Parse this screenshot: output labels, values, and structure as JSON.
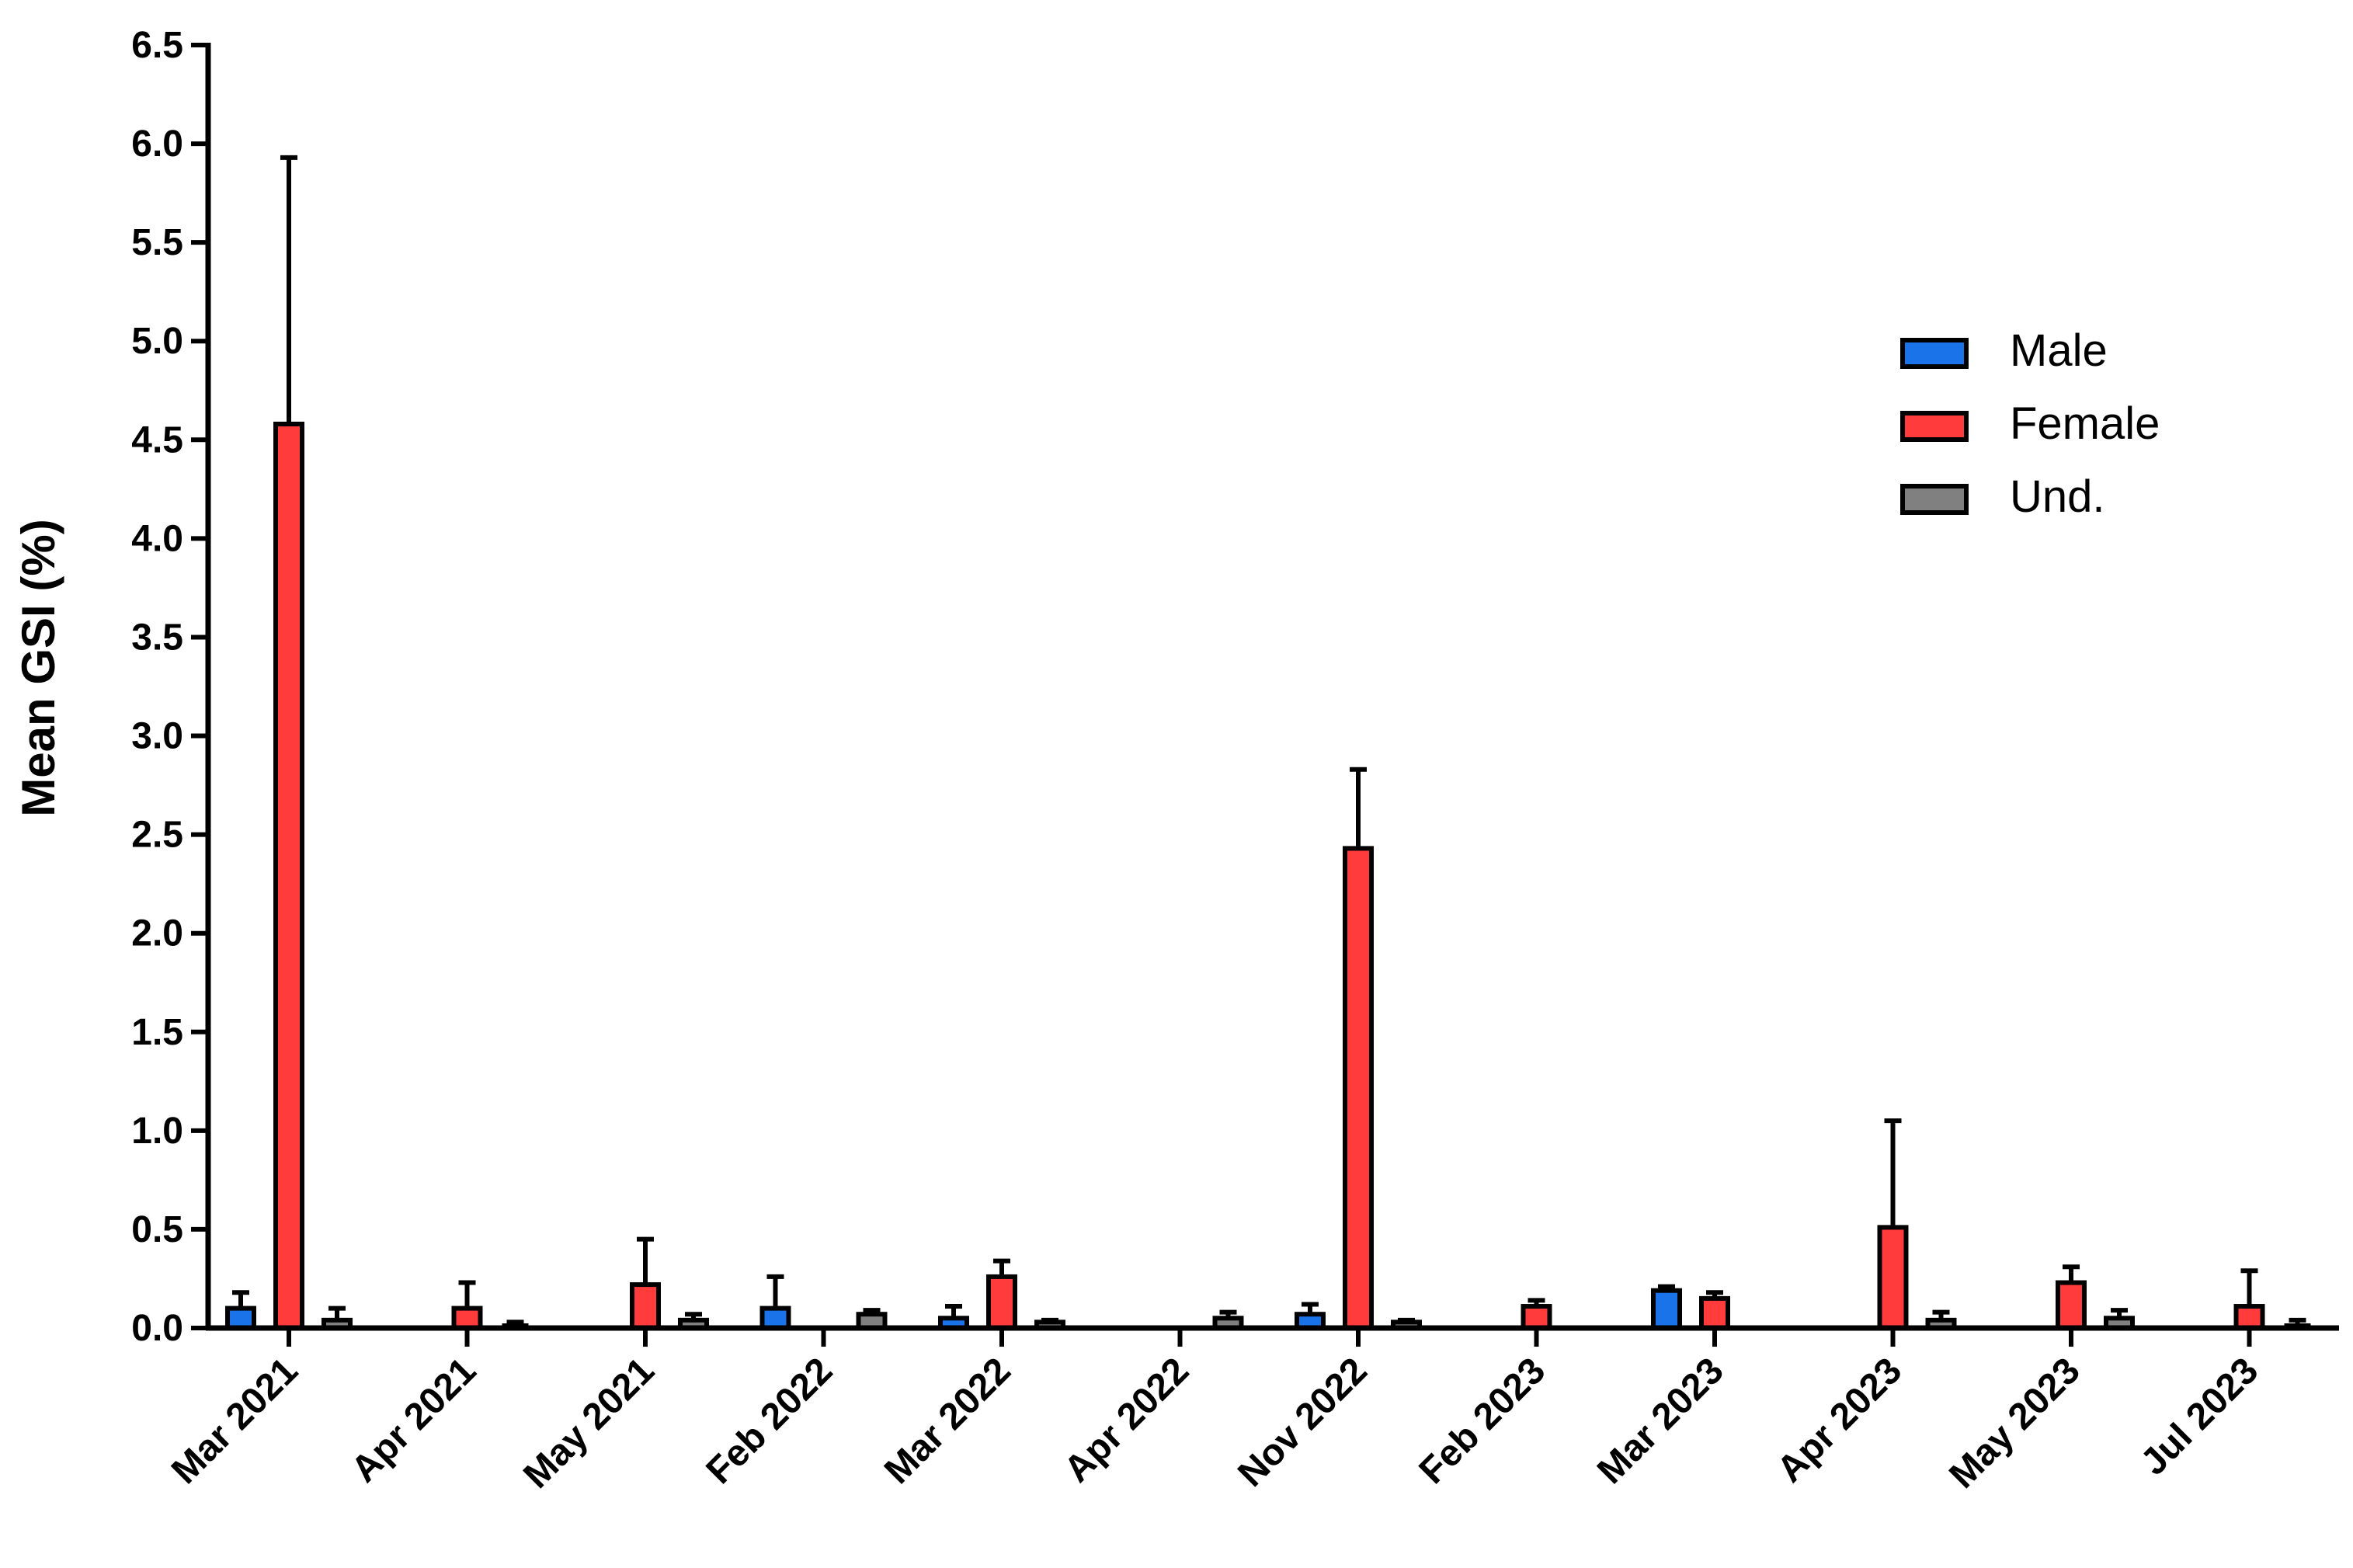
{
  "chart_data": {
    "type": "bar",
    "title": "",
    "xlabel": "",
    "ylabel": "Mean GSI (%)",
    "ylim": [
      0,
      6.5
    ],
    "yticks": [
      "0.0",
      "0.5",
      "1.0",
      "1.5",
      "2.0",
      "2.5",
      "3.0",
      "3.5",
      "4.0",
      "4.5",
      "5.0",
      "5.5",
      "6.0",
      "6.5"
    ],
    "categories": [
      "Mar 2021",
      "Apr 2021",
      "May 2021",
      "Feb 2022",
      "Mar 2022",
      "Apr 2022",
      "Nov 2022",
      "Feb 2023",
      "Mar 2023",
      "Apr 2023",
      "May 2023",
      "Jul 2023"
    ],
    "series": [
      {
        "name": "Male",
        "color": "#1a73e8",
        "values": [
          0.1,
          null,
          null,
          0.1,
          0.05,
          null,
          0.07,
          null,
          0.19,
          null,
          null,
          null
        ],
        "errors": [
          0.08,
          null,
          null,
          0.16,
          0.06,
          null,
          0.05,
          null,
          0.02,
          null,
          null,
          null
        ]
      },
      {
        "name": "Female",
        "color": "#ff3b3b",
        "values": [
          4.58,
          0.1,
          0.22,
          null,
          0.26,
          null,
          2.43,
          0.11,
          0.15,
          0.51,
          0.23,
          0.11
        ],
        "errors": [
          1.35,
          0.13,
          0.23,
          null,
          0.08,
          null,
          0.4,
          0.03,
          0.03,
          0.54,
          0.08,
          0.18
        ]
      },
      {
        "name": "Und.",
        "color": "#808080",
        "values": [
          0.04,
          0.0,
          0.04,
          0.07,
          0.03,
          0.05,
          0.03,
          null,
          null,
          0.04,
          0.05,
          0.0
        ],
        "errors": [
          0.06,
          0.03,
          0.03,
          0.02,
          0.01,
          0.03,
          0.01,
          null,
          null,
          0.04,
          0.04,
          0.04
        ]
      }
    ],
    "legend": {
      "position": "top-right"
    },
    "grid": false
  }
}
